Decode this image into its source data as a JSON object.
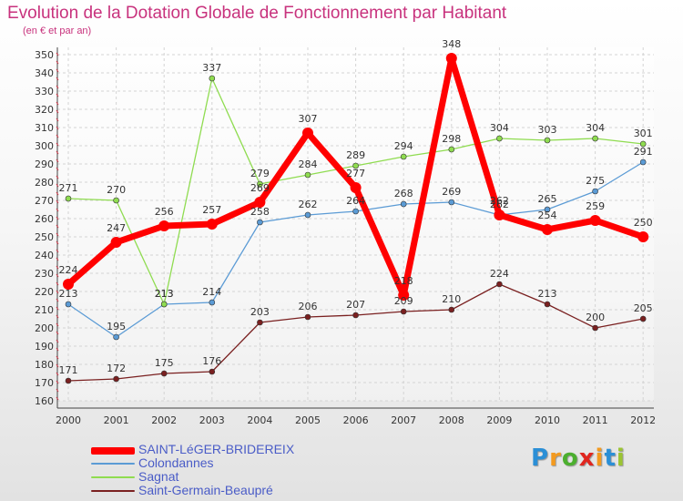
{
  "chart_data": {
    "type": "line",
    "title": "Evolution de la Dotation Globale de Fonctionnement par Habitant",
    "subtitle": "(en € et par an)",
    "xlabel": "",
    "ylabel": "",
    "ylim": [
      160,
      350
    ],
    "y_ticks": [
      160,
      170,
      180,
      190,
      200,
      210,
      220,
      230,
      240,
      250,
      260,
      270,
      280,
      290,
      300,
      310,
      320,
      330,
      340,
      350
    ],
    "categories": [
      "2000",
      "2001",
      "2002",
      "2003",
      "2004",
      "2005",
      "2006",
      "2007",
      "2008",
      "2009",
      "2010",
      "2011",
      "2012"
    ],
    "series": [
      {
        "name": "SAINT-LéGER-BRIDEREIX",
        "color": "#ff0000",
        "values": [
          224,
          247,
          256,
          257,
          269,
          307,
          277,
          218,
          348,
          262,
          254,
          259,
          250
        ]
      },
      {
        "name": "Colondannes",
        "color": "#5b9bd5",
        "values": [
          213,
          195,
          213,
          214,
          258,
          262,
          264,
          268,
          269,
          262,
          265,
          275,
          291
        ]
      },
      {
        "name": "Sagnat",
        "color": "#8fdc50",
        "values": [
          271,
          270,
          213,
          337,
          279,
          284,
          289,
          294,
          298,
          304,
          303,
          304,
          301
        ]
      },
      {
        "name": "Saint-Germain-Beaupré",
        "color": "#7a2020",
        "values": [
          171,
          172,
          175,
          176,
          203,
          206,
          207,
          209,
          210,
          224,
          213,
          200,
          205
        ]
      }
    ],
    "grid": true,
    "legend_position": "bottom-left"
  },
  "logo": {
    "letters": [
      "P",
      "r",
      "o",
      "x",
      "i",
      "t",
      "i"
    ],
    "colors": [
      "#2b8fd6",
      "#f39a1f",
      "#4caf2f",
      "#e0261f",
      "#f39a1f",
      "#2b8fd6",
      "#9bc433"
    ]
  }
}
